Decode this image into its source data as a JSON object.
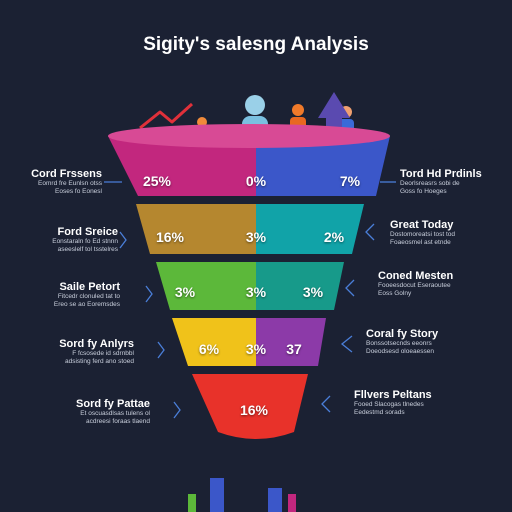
{
  "title": "Sigity's salesng Analysis",
  "colors": {
    "background": "#1b2133",
    "tier1_left": "#c2277e",
    "tier1_right": "#3b57c9",
    "tier2_left": "#b5872f",
    "tier2_right": "#11a3a8",
    "tier3_left": "#5cb83a",
    "tier3_right": "#179a8a",
    "tier4_left": "#f0c21a",
    "tier4_right": "#8c3aa8",
    "tier5": "#e8322a",
    "connector": "#4a7ed8"
  },
  "tiers": [
    {
      "left_value": "25%",
      "center_value": "0%",
      "right_value": "7%"
    },
    {
      "left_value": "16%",
      "center_value": "3%",
      "right_value": "2%"
    },
    {
      "left_value": "3%",
      "center_value": "3%",
      "right_value": "3%"
    },
    {
      "left_value": "6%",
      "center_value": "3%",
      "right_value": "37"
    },
    {
      "left_value": "",
      "center_value": "16%",
      "right_value": ""
    }
  ],
  "left_labels": [
    {
      "heading": "Cord Frssens",
      "sub1": "Eomrd fre Eunlsn otss",
      "sub2": "Eoses fo Eonesl"
    },
    {
      "heading": "Ford Sreice",
      "sub1": "Eonstaraln fo Ed stnnn",
      "sub2": "aseeslelf tol tsstelres"
    },
    {
      "heading": "Saile Petort",
      "sub1": "Fitcedr clonuled tat to",
      "sub2": "Ereo se ao Eoremsdes"
    },
    {
      "heading": "Sord fy Anlyrs",
      "sub1": "F fcsosede id sdrnbbl",
      "sub2": "adsisting ferd ano stoed"
    },
    {
      "heading": "Sord fy Pattae",
      "sub1": "Et oscuasdlsas tulens ol",
      "sub2": "acdreesi foraas tlaend"
    }
  ],
  "right_labels": [
    {
      "heading": "Tord Hd Prdinls",
      "sub1": "Deorlsreasrs sobi de",
      "sub2": "Goss fo Hoeges"
    },
    {
      "heading": "Great Today",
      "sub1": "Dostomoreatsi tost tod",
      "sub2": "Foaeosmel ast etnde"
    },
    {
      "heading": "Coned Mesten",
      "sub1": "Fooeesdocut Eseraoutee",
      "sub2": "Eoss Golny"
    },
    {
      "heading": "Coral fy Story",
      "sub1": "Bonssotsecnds eeonrs",
      "sub2": "Doeodsesd oloeaessen"
    },
    {
      "heading": "Fllvers Peltans",
      "sub1": "Fooed Slacogas tlnedes",
      "sub2": "Eedestmd sorads"
    }
  ]
}
